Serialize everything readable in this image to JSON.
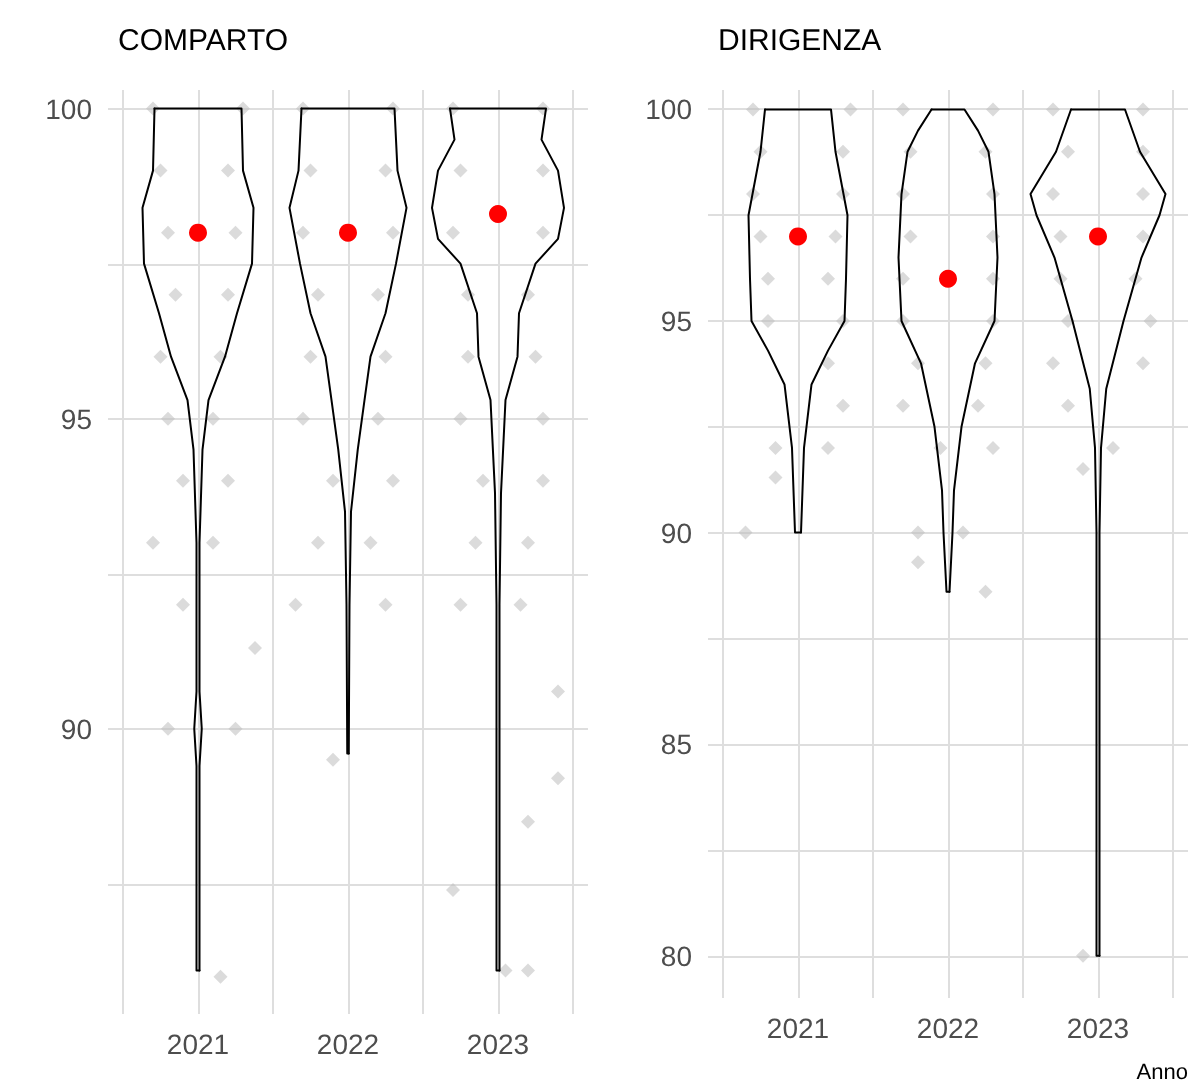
{
  "chart_data": [
    {
      "type": "scatter",
      "title": "COMPARTO",
      "xlim": [
        2020.4,
        2023.6
      ],
      "xticks": [
        {
          "value": 2020.5,
          "label": null
        },
        2021,
        {
          "value": 2021.5,
          "label": null
        },
        2022,
        {
          "value": 2022.5,
          "label": null
        },
        2023,
        {
          "value": 2023.5,
          "label": null
        }
      ],
      "ylim": [
        85.4,
        100.3
      ],
      "yticks": [
        {
          "value": 87.5,
          "label": null
        },
        90,
        {
          "value": 92.5,
          "label": null
        },
        95,
        {
          "value": 97.5,
          "label": null
        },
        100
      ],
      "grid": true,
      "series": [
        {
          "marker": "diamond",
          "color": "#bdbdbd",
          "x": [
            2020.7,
            2021.3,
            2020.75,
            2021.2,
            2020.8,
            2021.25,
            2020.85,
            2021.2,
            2020.75,
            2021.15,
            2020.8,
            2021.1,
            2020.9,
            2021.2,
            2020.7,
            2021.1,
            2020.9,
            2021.38,
            2020.8,
            2021.25,
            2021.15,
            2021.7,
            2022.3,
            2021.75,
            2022.25,
            2021.7,
            2022.3,
            2021.8,
            2022.2,
            2021.75,
            2022.25,
            2021.7,
            2022.2,
            2021.9,
            2022.3,
            2021.8,
            2022.15,
            2021.65,
            2022.25,
            2021.9,
            2022.7,
            2023.3,
            2022.75,
            2023.3,
            2022.7,
            2023.3,
            2022.8,
            2023.2,
            2022.8,
            2023.25,
            2022.75,
            2023.3,
            2022.9,
            2023.3,
            2022.85,
            2023.2,
            2022.75,
            2023.15,
            2023.4,
            2023.4,
            2023.2,
            2022.7,
            2023.05,
            2023.2
          ],
          "values": [
            100,
            100,
            99,
            99,
            98,
            98,
            97,
            97,
            96,
            96,
            95,
            95,
            94,
            94,
            93,
            93,
            92,
            91.3,
            90,
            90,
            86,
            100,
            100,
            99,
            99,
            98,
            98,
            97,
            97,
            96,
            96,
            95,
            95,
            94,
            94,
            93,
            93,
            92,
            92,
            89.5,
            100,
            100,
            99,
            99,
            98,
            98,
            97,
            97,
            96,
            96,
            95,
            95,
            94,
            94,
            93,
            93,
            92,
            92,
            90.6,
            89.2,
            88.5,
            87.4,
            86.1,
            86.1
          ]
        },
        {
          "type": "line",
          "marker": "none",
          "color": "#000000",
          "x": [
            2020.71,
            2021.29,
            2021.3,
            2021.37,
            2021.36,
            2021.26,
            2021.18,
            2021.07,
            2021.03,
            2021.01,
            2021.01,
            2021.025,
            2021.01,
            2021.01
          ],
          "values": [
            100,
            100,
            99,
            98.4,
            97.5,
            96.7,
            96,
            95.3,
            94.5,
            93,
            90.6,
            90,
            89.4,
            86.1
          ]
        },
        {
          "type": "line",
          "marker": "none",
          "color": "#000000",
          "x": [
            2020.71,
            2020.7,
            2020.63,
            2020.64,
            2020.74,
            2020.82,
            2020.93,
            2020.97,
            2020.99,
            2020.99,
            2020.975,
            2020.99,
            2020.99,
            2021.01
          ],
          "values": [
            100,
            99,
            98.4,
            97.5,
            96.7,
            96,
            95.3,
            94.5,
            93,
            90.6,
            90,
            89.4,
            86.1,
            86.1
          ]
        },
        {
          "type": "line",
          "marker": "none",
          "color": "#000000",
          "x": [
            2021.69,
            2022.31,
            2022.33,
            2022.39,
            2022.32,
            2022.25,
            2022.15,
            2022.11,
            2022.065,
            2022.02,
            2022.01,
            2022.005
          ],
          "values": [
            100,
            100,
            99,
            98.4,
            97.5,
            96.7,
            96,
            95.3,
            94.5,
            93.5,
            92,
            89.6
          ]
        },
        {
          "type": "line",
          "marker": "none",
          "color": "#000000",
          "x": [
            2021.69,
            2021.67,
            2021.61,
            2021.68,
            2021.75,
            2021.85,
            2021.89,
            2021.935,
            2021.98,
            2021.99,
            2021.995,
            2022.005
          ],
          "values": [
            100,
            99,
            98.4,
            97.5,
            96.7,
            96,
            95.3,
            94.5,
            93.5,
            92,
            89.6,
            89.6
          ]
        },
        {
          "type": "line",
          "marker": "none",
          "color": "#000000",
          "x": [
            2022.68,
            2023.32,
            2023.29,
            2023.4,
            2023.44,
            2023.4,
            2023.25,
            2023.14,
            2023.13,
            2023.05,
            2023.02,
            2023.01,
            2023.01
          ],
          "values": [
            100,
            100,
            99.5,
            99,
            98.4,
            97.9,
            97.5,
            96.7,
            96,
            95.3,
            93.8,
            92,
            86.1
          ]
        },
        {
          "type": "line",
          "marker": "none",
          "color": "#000000",
          "x": [
            2022.68,
            2022.71,
            2022.6,
            2022.56,
            2022.6,
            2022.75,
            2022.86,
            2022.87,
            2022.95,
            2022.98,
            2022.99,
            2022.99,
            2023.01
          ],
          "values": [
            100,
            99.5,
            99,
            98.4,
            97.9,
            97.5,
            96.7,
            96,
            95.3,
            93.8,
            92,
            86.1,
            86.1
          ]
        },
        {
          "marker": "circle",
          "color": "#ff0000",
          "x": [
            2021,
            2022,
            2023
          ],
          "values": [
            98,
            98,
            98.3
          ]
        }
      ]
    },
    {
      "type": "scatter",
      "title": "DIRIGENZA",
      "xlabel": "Anno",
      "xlim": [
        2020.4,
        2023.6
      ],
      "xticks": [
        {
          "value": 2020.5,
          "label": null
        },
        2021,
        {
          "value": 2021.5,
          "label": null
        },
        2022,
        {
          "value": 2022.5,
          "label": null
        },
        2023,
        {
          "value": 2023.5,
          "label": null
        }
      ],
      "ylim": [
        79,
        100.46
      ],
      "yticks": [
        80,
        {
          "value": 82.5,
          "label": null
        },
        85,
        {
          "value": 87.5,
          "label": null
        },
        90,
        {
          "value": 92.5,
          "label": null
        },
        95,
        {
          "value": 97.5,
          "label": null
        },
        100
      ],
      "grid": true,
      "series": [
        {
          "marker": "diamond",
          "color": "#bdbdbd",
          "x": [
            2020.7,
            2021.35,
            2020.75,
            2021.3,
            2020.7,
            2021.3,
            2020.75,
            2021.25,
            2020.8,
            2021.2,
            2020.8,
            2021.3,
            2021.2,
            2021.3,
            2020.85,
            2021.2,
            2020.85,
            2020.65,
            2021.7,
            2022.3,
            2021.75,
            2022.25,
            2021.7,
            2022.3,
            2021.75,
            2022.3,
            2021.7,
            2022.3,
            2021.7,
            2022.3,
            2021.8,
            2022.25,
            2021.7,
            2022.2,
            2021.95,
            2022.3,
            2021.8,
            2022.1,
            2021.8,
            2022.25,
            2022.7,
            2023.3,
            2022.8,
            2023.3,
            2022.7,
            2023.3,
            2022.75,
            2023.3,
            2022.75,
            2023.25,
            2022.8,
            2023.35,
            2022.7,
            2023.3,
            2022.8,
            2023.1,
            2022.9,
            2022.9
          ],
          "values": [
            100,
            100,
            99,
            99,
            98,
            98,
            97,
            97,
            96,
            96,
            95,
            95,
            94,
            93,
            92,
            92,
            91.3,
            90,
            100,
            100,
            99,
            99,
            98,
            98,
            97,
            97,
            96,
            96,
            95,
            95,
            94,
            94,
            93,
            93,
            92,
            92,
            90,
            90,
            89.3,
            88.6,
            100,
            100,
            99,
            99,
            98,
            98,
            97,
            97,
            96,
            96,
            95,
            95,
            94,
            94,
            93,
            92,
            91.5,
            80
          ]
        },
        {
          "type": "line",
          "marker": "none",
          "color": "#000000",
          "x": [
            2020.78,
            2021.22,
            2021.25,
            2021.33,
            2021.32,
            2021.31,
            2021.2,
            2021.09,
            2021.04,
            2021.02
          ],
          "values": [
            100,
            100,
            99,
            97.5,
            96,
            95,
            94.3,
            93.5,
            92,
            90
          ]
        },
        {
          "type": "line",
          "marker": "none",
          "color": "#000000",
          "x": [
            2020.78,
            2020.75,
            2020.67,
            2020.68,
            2020.69,
            2020.8,
            2020.91,
            2020.96,
            2020.98,
            2021.02
          ],
          "values": [
            100,
            99,
            97.5,
            96,
            95,
            94.3,
            93.5,
            92,
            90,
            90
          ]
        },
        {
          "type": "line",
          "marker": "none",
          "color": "#000000",
          "x": [
            2021.89,
            2022.11,
            2022.2,
            2022.27,
            2022.31,
            2022.33,
            2022.31,
            2022.18,
            2022.09,
            2022.04,
            2022.03,
            2022.02,
            2022.01
          ],
          "values": [
            100,
            100,
            99.5,
            99,
            98,
            96.5,
            95,
            94,
            92.5,
            91,
            90,
            89.3,
            88.6
          ]
        },
        {
          "type": "line",
          "marker": "none",
          "color": "#000000",
          "x": [
            2021.89,
            2021.8,
            2021.73,
            2021.69,
            2021.67,
            2021.69,
            2021.82,
            2021.91,
            2021.96,
            2021.97,
            2021.98,
            2021.99,
            2022.01
          ],
          "values": [
            100,
            99.5,
            99,
            98,
            96.5,
            95,
            94,
            92.5,
            91,
            90,
            89.3,
            88.6,
            88.6
          ]
        },
        {
          "type": "line",
          "marker": "none",
          "color": "#000000",
          "x": [
            2022.82,
            2023.18,
            2023.28,
            2023.45,
            2023.41,
            2023.29,
            2023.17,
            2023.055,
            2023.02,
            2023.01,
            2023.01
          ],
          "values": [
            100,
            100,
            99,
            98,
            97.5,
            96.5,
            95,
            93.4,
            92,
            90,
            80
          ]
        },
        {
          "type": "line",
          "marker": "none",
          "color": "#000000",
          "x": [
            2022.82,
            2022.72,
            2022.55,
            2022.59,
            2022.71,
            2022.83,
            2022.945,
            2022.98,
            2022.99,
            2022.99,
            2023.01
          ],
          "values": [
            100,
            99,
            98,
            97.5,
            96.5,
            95,
            93.4,
            92,
            90,
            80,
            80
          ]
        },
        {
          "marker": "circle",
          "color": "#ff0000",
          "x": [
            2021,
            2022,
            2023
          ],
          "values": [
            97,
            96,
            97
          ]
        }
      ]
    }
  ]
}
